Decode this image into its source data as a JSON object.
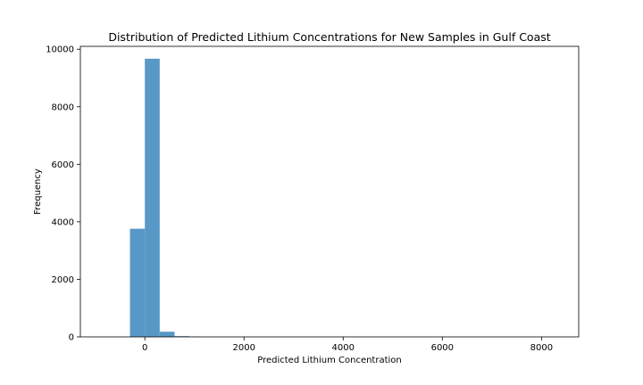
{
  "chart_data": {
    "type": "bar",
    "title": "Distribution of Predicted Lithium Concentrations for New Samples in Gulf Coast",
    "xlabel": "Predicted Lithium Concentration",
    "ylabel": "Frequency",
    "xlim": [
      -1300,
      8750
    ],
    "ylim": [
      0,
      10100
    ],
    "xticks": [
      0,
      2000,
      4000,
      6000,
      8000
    ],
    "yticks": [
      0,
      2000,
      4000,
      6000,
      8000,
      10000
    ],
    "bin_width": 300,
    "bins": [
      {
        "x0": -300,
        "x1": 0,
        "count": 3760
      },
      {
        "x0": 0,
        "x1": 300,
        "count": 9670
      },
      {
        "x0": 300,
        "x1": 600,
        "count": 180
      },
      {
        "x0": 600,
        "x1": 900,
        "count": 25
      },
      {
        "x0": 900,
        "x1": 1200,
        "count": 6
      },
      {
        "x0": 1200,
        "x1": 1500,
        "count": 2
      }
    ],
    "bar_color": "#3f89be",
    "bar_alpha": 0.87,
    "grid": false,
    "legend": "none"
  }
}
